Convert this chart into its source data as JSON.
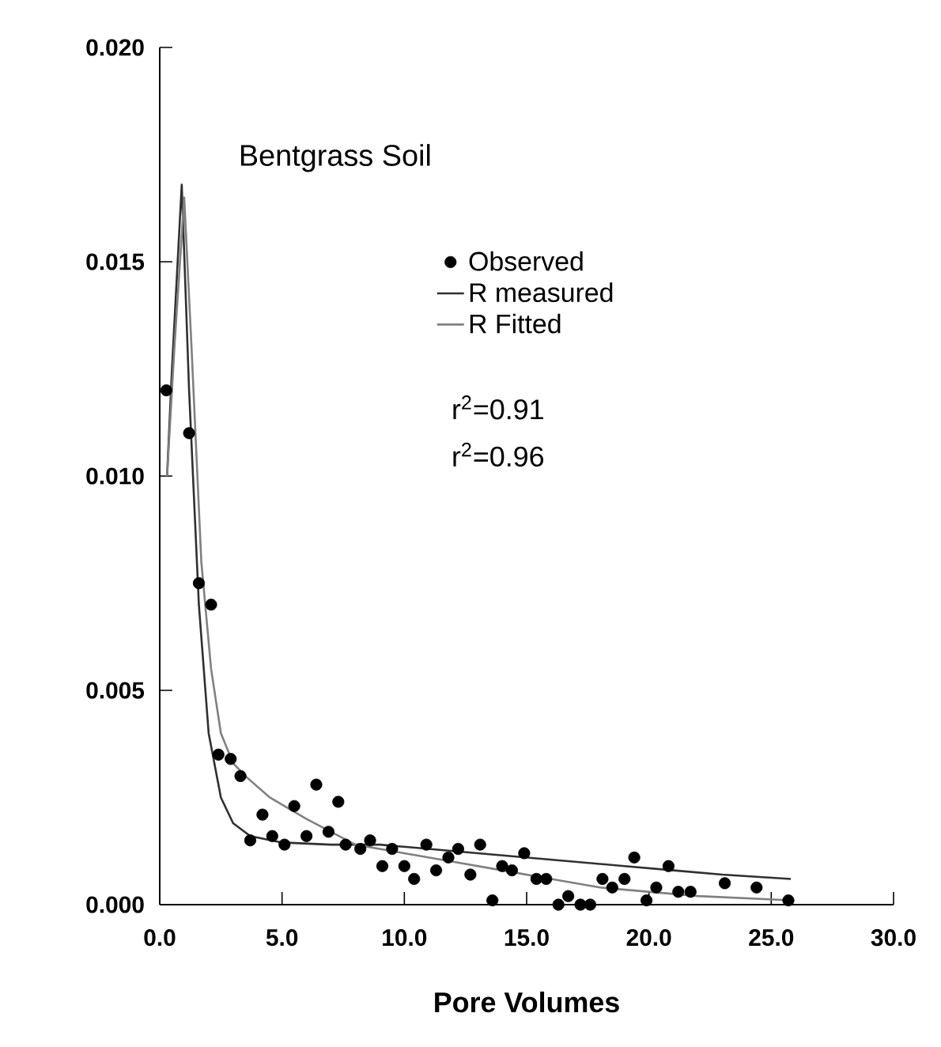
{
  "chart_data": {
    "type": "scatter",
    "title": "Bentgrass Soil",
    "xlabel": "Pore Volumes",
    "annotations": [
      "r$^{2}$=0.91",
      "r$^{2}$=0.96"
    ],
    "xlim": [
      0,
      30
    ],
    "ylim": [
      0,
      0.02
    ],
    "xticks": [
      {
        "value": 0,
        "label": "0.0"
      },
      {
        "value": 5,
        "label": "5.0"
      },
      {
        "value": 10,
        "label": "10.0"
      },
      {
        "value": 15,
        "label": "15.0"
      },
      {
        "value": 20,
        "label": "20.0"
      },
      {
        "value": 25,
        "label": "25.0"
      },
      {
        "value": 30,
        "label": "30.0"
      }
    ],
    "yticks": [
      {
        "value": 0,
        "label": "0.000"
      },
      {
        "value": 0.005,
        "label": "0.005"
      },
      {
        "value": 0.01,
        "label": "0.010"
      },
      {
        "value": 0.015,
        "label": "0.015"
      },
      {
        "value": 0.02,
        "label": "0.020"
      }
    ],
    "grid": false,
    "legend": "top",
    "series": [
      {
        "name": "Observed",
        "marker": "circle",
        "color": "#000000",
        "x": [
          0.27,
          1.2,
          1.6,
          2.1,
          2.4,
          2.9,
          3.3,
          3.7,
          4.2,
          4.6,
          5.1,
          5.5,
          6.0,
          6.4,
          6.9,
          7.3,
          7.6,
          8.2,
          8.6,
          9.1,
          9.5,
          10.0,
          10.4,
          10.9,
          11.3,
          11.8,
          12.2,
          12.7,
          13.1,
          13.6,
          14.0,
          14.4,
          14.9,
          15.4,
          15.8,
          16.3,
          16.7,
          17.2,
          17.6,
          18.1,
          18.5,
          19.0,
          19.4,
          19.9,
          20.3,
          20.8,
          21.2,
          21.7,
          23.1,
          24.4,
          25.7
        ],
        "values": [
          0.012,
          0.011,
          0.0075,
          0.007,
          0.0035,
          0.0034,
          0.003,
          0.0015,
          0.0021,
          0.0016,
          0.0014,
          0.0023,
          0.0016,
          0.0028,
          0.0017,
          0.0024,
          0.0014,
          0.0013,
          0.0015,
          0.0009,
          0.0013,
          0.0009,
          0.0006,
          0.0014,
          0.0008,
          0.0011,
          0.0013,
          0.0007,
          0.0014,
          0.0001,
          0.0009,
          0.0008,
          0.0012,
          0.0006,
          0.0006,
          0.0,
          0.0002,
          0.0,
          0.0,
          0.0006,
          0.0004,
          0.0006,
          0.0011,
          0.0001,
          0.0004,
          0.0009,
          0.0003,
          0.0003,
          0.0005,
          0.0004,
          0.0001
        ]
      },
      {
        "name": "R measured",
        "type": "line",
        "marker": "none",
        "line_style": "solid",
        "color": "#303030",
        "x": [
          0.3,
          0.5,
          0.9,
          1.2,
          1.6,
          2.0,
          2.5,
          3.0,
          3.7,
          5,
          7,
          9,
          11,
          13,
          15,
          17,
          19,
          21,
          23,
          25.8
        ],
        "values": [
          0.01,
          0.0125,
          0.0168,
          0.012,
          0.007,
          0.004,
          0.0025,
          0.0019,
          0.0016,
          0.00145,
          0.0014,
          0.0014,
          0.0013,
          0.0012,
          0.0011,
          0.001,
          0.0009,
          0.0008,
          0.0007,
          0.0006
        ]
      },
      {
        "name": "R Fitted",
        "type": "line",
        "marker": "none",
        "line_style": "solid",
        "color": "#808080",
        "x": [
          0.3,
          0.6,
          1.0,
          1.3,
          1.7,
          2.1,
          2.5,
          3.0,
          3.5,
          4.5,
          6,
          7,
          8,
          10,
          12,
          14,
          16,
          18,
          20,
          22,
          25.8
        ],
        "values": [
          0.01,
          0.013,
          0.0165,
          0.013,
          0.008,
          0.0055,
          0.004,
          0.0033,
          0.003,
          0.0025,
          0.002,
          0.0017,
          0.0014,
          0.0012,
          0.001,
          0.0008,
          0.0006,
          0.0004,
          0.0003,
          0.0002,
          0.0001
        ]
      }
    ]
  }
}
